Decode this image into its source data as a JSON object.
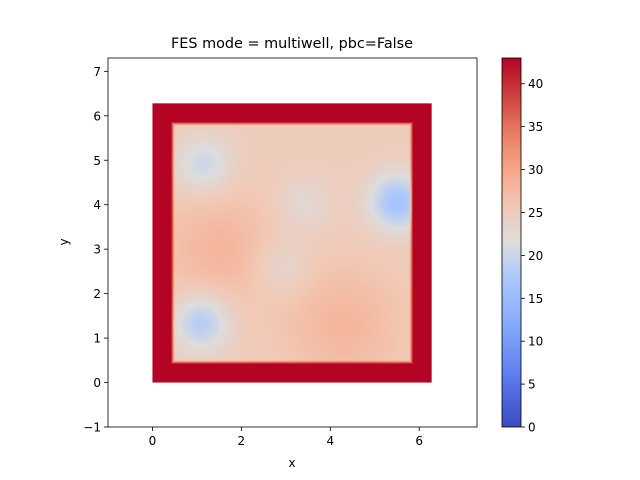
{
  "chart_data": {
    "type": "heatmap",
    "title": "FES mode = multiwell, pbc=False",
    "xlabel": "x",
    "ylabel": "y",
    "xlim": [
      -1.0,
      7.3
    ],
    "ylim": [
      -1.0,
      7.3
    ],
    "x_ticks": [
      0,
      2,
      4,
      6
    ],
    "y_ticks": [
      -1,
      0,
      1,
      2,
      3,
      4,
      5,
      6,
      7
    ],
    "colormap": "coolwarm",
    "colorbar": {
      "range": [
        0,
        43
      ],
      "ticks": [
        0,
        5,
        10,
        15,
        20,
        25,
        30,
        35,
        40
      ]
    },
    "data_region": {
      "x": [
        0,
        6.28
      ],
      "y": [
        0,
        6.28
      ]
    },
    "wall_region": {
      "x": [
        0.5,
        5.78
      ],
      "y": [
        0.5,
        5.78
      ],
      "value_outside": 43
    },
    "background_value": 25,
    "wells": [
      {
        "x": 5.5,
        "y": 4.05,
        "depth": 8.5
      },
      {
        "x": 1.1,
        "y": 1.35,
        "depth": 7
      },
      {
        "x": 1.15,
        "y": 4.9,
        "depth": 5
      },
      {
        "x": 3.4,
        "y": 4.0,
        "depth": 2.5
      },
      {
        "x": 2.9,
        "y": 2.6,
        "depth": 2.5
      }
    ],
    "ridges": [
      {
        "x": 1.5,
        "y": 3.0,
        "height": 3
      },
      {
        "x": 4.3,
        "y": 1.3,
        "height": 3
      }
    ]
  }
}
